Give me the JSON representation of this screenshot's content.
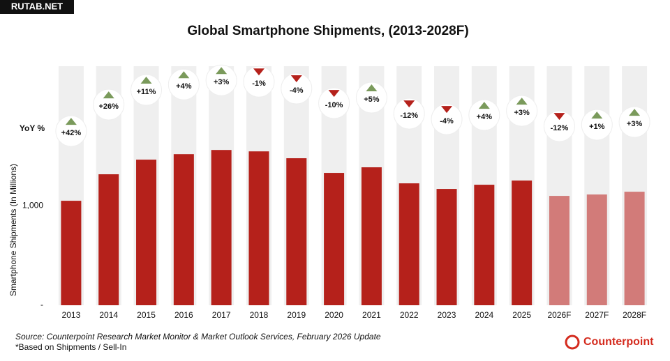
{
  "chart_data": {
    "type": "bar",
    "title": "Global Smartphone Shipments, (2013-2028F)",
    "y_label": "Smartphone Shipments (In Millions)",
    "categories": [
      "2013",
      "2014",
      "2015",
      "2016",
      "2017",
      "2018",
      "2019",
      "2020",
      "2021",
      "2022",
      "2023",
      "2024",
      "2025",
      "2026F",
      "2027F",
      "2028F"
    ],
    "values": [
      1049,
      1315,
      1462,
      1517,
      1559,
      1545,
      1476,
      1329,
      1385,
      1224,
      1168,
      1210,
      1252,
      1098,
      1112,
      1140
    ],
    "color": "#b5211b",
    "forecast_color": "#d27b79",
    "yoy_title": "YoY %",
    "yoy_labels": [
      "+42%",
      "+26%",
      "+11%",
      "+4%",
      "+3%",
      "-1%",
      "-4%",
      "-10%",
      "+5%",
      "-12%",
      "-4%",
      "+4%",
      "+3%",
      "-12%",
      "+1%",
      "+3%"
    ],
    "ylim": [
      0,
      2400
    ],
    "yticks": [
      {
        "value": 0,
        "label": "-"
      },
      {
        "value": 1000,
        "label": "1,000"
      }
    ],
    "source": "Source: Counterpoint Research Market Monitor & Market Outlook Services, February 2026 Update",
    "note": "*Based on Shipments / Sell-In",
    "brand": "Counterpoint",
    "watermark": "RUTAB.NET"
  }
}
